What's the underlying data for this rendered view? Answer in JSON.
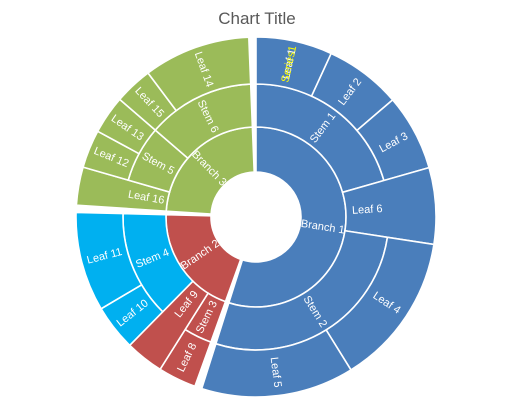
{
  "chart_data": {
    "type": "sunburst",
    "title": "Chart Title",
    "highlight_label": "Series1",
    "colors": {
      "Branch 1": "#4a7ebb",
      "Branch 2": "#c0504d",
      "Branch 3": "#9bbb59",
      "Stem 4": "#00b0f0",
      "highlight_text": "#ffff00"
    },
    "hierarchy": [
      {
        "name": "Branch 1",
        "children": [
          {
            "name": "Stem 1",
            "children": [
              {
                "name": "Leaf 1",
                "value": 1,
                "label": "Series1"
              },
              {
                "name": "Leaf 2",
                "value": 1
              },
              {
                "name": "Leaf 3",
                "value": 1
              }
            ]
          },
          {
            "name": "Leaf 6",
            "value": 1
          },
          {
            "name": "Stem 2",
            "children": [
              {
                "name": "Leaf 4",
                "value": 2
              },
              {
                "name": "Leaf 5",
                "value": 2
              }
            ]
          }
        ]
      },
      {
        "name": "Branch 2",
        "children": [
          {
            "name": "Stem 3",
            "children": [
              {
                "name": "Leaf 8",
                "value": 0.5
              }
            ]
          },
          {
            "name": "Leaf 9",
            "value": 0.5
          },
          {
            "name": "Stem 4",
            "children": [
              {
                "name": "Leaf 10",
                "value": 0.6
              },
              {
                "name": "Leaf 11",
                "value": 1.3
              }
            ]
          }
        ]
      },
      {
        "name": "Branch 3",
        "children": [
          {
            "name": "Leaf 16",
            "value": 0.5
          },
          {
            "name": "Stem 5",
            "children": [
              {
                "name": "Leaf 12",
                "value": 0.5
              },
              {
                "name": "Leaf 13",
                "value": 0.5
              }
            ]
          },
          {
            "name": "Stem 6",
            "children": [
              {
                "name": "Leaf 15",
                "value": 0.5
              },
              {
                "name": "Leaf 14",
                "value": 1.4
              }
            ]
          }
        ]
      }
    ]
  }
}
